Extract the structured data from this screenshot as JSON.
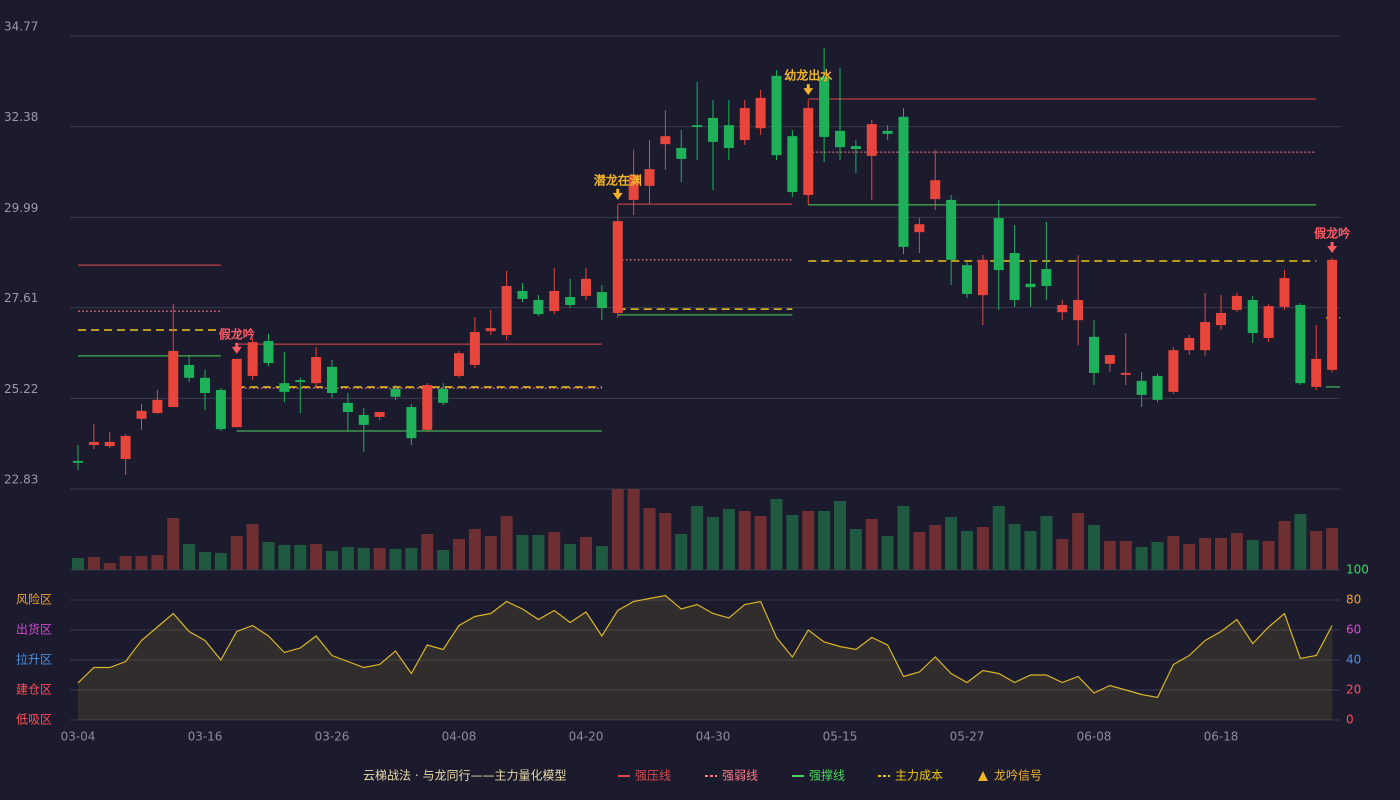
{
  "chart_data": [
    {
      "type": "candlestick",
      "title": "云梯战法 · 与龙同行——主力量化模型",
      "ylim": [
        22.83,
        34.77
      ],
      "yticks": [
        22.83,
        25.22,
        27.61,
        29.99,
        32.38,
        34.77
      ],
      "grid": true,
      "up_color": "#e8453c",
      "down_color": "#1fb05a",
      "open": [
        23.57,
        23.99,
        23.96,
        23.62,
        24.68,
        24.83,
        24.99,
        26.1,
        25.76,
        25.44,
        24.46,
        25.81,
        26.73,
        25.62,
        25.7,
        25.62,
        26.05,
        25.1,
        24.78,
        24.73,
        25.47,
        24.99,
        24.39,
        25.47,
        25.81,
        26.1,
        26.99,
        26.89,
        28.05,
        27.81,
        27.52,
        27.89,
        27.92,
        28.02,
        27.47,
        30.45,
        30.82,
        31.92,
        31.82,
        32.42,
        32.61,
        32.42,
        32.03,
        32.34,
        33.72,
        32.13,
        30.58,
        33.69,
        32.27,
        31.87,
        31.61,
        32.27,
        32.64,
        29.6,
        30.47,
        30.45,
        28.73,
        27.94,
        29.97,
        29.05,
        28.24,
        28.63,
        27.49,
        27.28,
        26.84,
        26.13,
        25.84,
        25.68,
        25.81,
        25.39,
        26.49,
        26.49,
        27.15,
        27.55,
        27.81,
        26.81,
        27.63,
        27.68,
        25.52,
        25.97
      ],
      "high": [
        23.99,
        24.54,
        24.33,
        24.28,
        25.07,
        25.44,
        27.71,
        26.36,
        25.97,
        25.49,
        26.26,
        26.81,
        26.92,
        26.44,
        25.76,
        26.57,
        26.23,
        25.36,
        24.96,
        24.86,
        25.57,
        25.07,
        25.62,
        25.62,
        26.47,
        27.36,
        27.55,
        28.58,
        28.26,
        27.94,
        28.66,
        28.37,
        28.66,
        28.21,
        30.32,
        31.77,
        32.03,
        32.82,
        32.29,
        33.56,
        33.08,
        33.08,
        33.08,
        33.35,
        33.87,
        32.29,
        33.08,
        34.45,
        33.93,
        32.03,
        32.56,
        32.42,
        32.87,
        29.97,
        31.77,
        30.58,
        28.81,
        29.0,
        30.45,
        29.79,
        28.87,
        29.87,
        27.81,
        28.99,
        27.28,
        26.36,
        26.94,
        25.91,
        25.86,
        26.57,
        26.89,
        28.0,
        27.94,
        28.0,
        27.92,
        27.71,
        28.6,
        27.73,
        27.15,
        28.92
      ],
      "low": [
        23.33,
        23.88,
        23.91,
        23.2,
        24.39,
        24.83,
        24.99,
        25.65,
        24.91,
        24.36,
        24.46,
        25.7,
        26.07,
        25.12,
        24.83,
        25.49,
        25.23,
        24.33,
        23.81,
        24.65,
        25.18,
        23.99,
        24.33,
        25.04,
        25.76,
        26.02,
        26.89,
        26.76,
        27.76,
        27.39,
        27.44,
        27.6,
        27.81,
        27.28,
        27.34,
        30.05,
        30.34,
        31.24,
        30.92,
        31.5,
        30.71,
        31.5,
        31.9,
        32.16,
        31.5,
        30.53,
        30.32,
        31.45,
        31.5,
        31.16,
        30.45,
        32.03,
        29.02,
        29.05,
        30.18,
        28.21,
        27.86,
        27.15,
        27.55,
        27.63,
        27.63,
        27.81,
        27.28,
        26.62,
        25.57,
        25.91,
        25.57,
        24.99,
        25.12,
        25.34,
        26.36,
        26.34,
        27.02,
        27.5,
        26.68,
        26.7,
        27.55,
        25.57,
        25.44,
        25.91
      ],
      "close": [
        23.52,
        24.07,
        24.07,
        24.23,
        24.89,
        25.18,
        26.47,
        25.76,
        25.36,
        24.41,
        26.26,
        26.7,
        26.15,
        25.39,
        25.65,
        26.31,
        25.36,
        24.86,
        24.52,
        24.86,
        25.26,
        24.17,
        25.57,
        25.1,
        26.41,
        26.97,
        27.07,
        28.18,
        27.84,
        27.44,
        28.05,
        27.68,
        28.37,
        27.6,
        29.89,
        31.11,
        31.26,
        32.13,
        31.53,
        32.37,
        31.98,
        31.82,
        32.87,
        33.14,
        31.63,
        30.66,
        32.87,
        32.11,
        31.84,
        31.79,
        32.45,
        32.19,
        29.21,
        29.81,
        30.97,
        28.87,
        27.97,
        28.87,
        28.6,
        27.81,
        28.15,
        28.18,
        27.68,
        27.81,
        25.89,
        26.36,
        25.89,
        25.31,
        25.18,
        26.49,
        26.81,
        27.23,
        27.47,
        27.92,
        26.94,
        27.65,
        28.39,
        25.62,
        26.26,
        28.87
      ],
      "series": [
        {
          "name": "强压线",
          "color": "#e0474c",
          "dash": "solid",
          "values": [
            28.73,
            28.73,
            28.73,
            28.73,
            28.73,
            28.73,
            28.73,
            28.73,
            28.73,
            28.73,
            26.65,
            26.65,
            26.65,
            26.65,
            26.65,
            26.65,
            26.65,
            26.65,
            26.65,
            26.65,
            26.65,
            26.65,
            26.65,
            26.65,
            26.65,
            26.65,
            26.65,
            26.65,
            26.65,
            26.65,
            26.65,
            26.65,
            26.65,
            26.65,
            30.34,
            30.34,
            30.34,
            30.34,
            30.34,
            30.34,
            30.34,
            30.34,
            30.34,
            30.34,
            30.34,
            30.34,
            33.11,
            33.11,
            33.11,
            33.11,
            33.11,
            33.11,
            33.11,
            33.11,
            33.11,
            33.11,
            33.11,
            33.11,
            33.11,
            33.11,
            33.11,
            33.11,
            33.11,
            33.11,
            33.11,
            33.11,
            33.11,
            33.11,
            33.11,
            33.11,
            33.11,
            33.11,
            33.11,
            33.11,
            33.11,
            33.11,
            33.11,
            33.11,
            33.11,
            null
          ]
        },
        {
          "name": "强弱线",
          "color": "#ff7a8a",
          "dash": "dotted",
          "values": [
            27.52,
            27.52,
            27.52,
            27.52,
            27.52,
            27.52,
            27.52,
            27.52,
            27.52,
            27.52,
            25.49,
            25.49,
            25.49,
            25.49,
            25.49,
            25.49,
            25.49,
            25.49,
            25.49,
            25.49,
            25.49,
            25.49,
            25.49,
            25.49,
            25.49,
            25.49,
            25.49,
            25.49,
            25.49,
            25.49,
            25.49,
            25.49,
            25.49,
            25.49,
            28.87,
            28.87,
            28.87,
            28.87,
            28.87,
            28.87,
            28.87,
            28.87,
            28.87,
            28.87,
            28.87,
            28.87,
            31.71,
            31.71,
            31.71,
            31.71,
            31.71,
            31.71,
            31.71,
            31.71,
            31.71,
            31.71,
            31.71,
            31.71,
            31.71,
            31.71,
            31.71,
            31.71,
            31.71,
            31.71,
            31.71,
            31.71,
            31.71,
            31.71,
            31.71,
            31.71,
            31.71,
            31.71,
            31.71,
            31.71,
            31.71,
            31.71,
            31.71,
            31.71,
            31.71,
            null
          ]
        },
        {
          "name": "强撑线",
          "color": "#4cd35c",
          "dash": "solid",
          "values": [
            26.34,
            26.34,
            26.34,
            26.34,
            26.34,
            26.34,
            26.34,
            26.34,
            26.34,
            26.34,
            24.36,
            24.36,
            24.36,
            24.36,
            24.36,
            24.36,
            24.36,
            24.36,
            24.36,
            24.36,
            24.36,
            24.36,
            24.36,
            24.36,
            24.36,
            24.36,
            24.36,
            24.36,
            24.36,
            24.36,
            24.36,
            24.36,
            24.36,
            24.36,
            27.42,
            27.42,
            27.42,
            27.42,
            27.42,
            27.42,
            27.42,
            27.42,
            27.42,
            27.42,
            27.42,
            27.42,
            30.32,
            30.32,
            30.32,
            30.32,
            30.32,
            30.32,
            30.32,
            30.32,
            30.32,
            30.32,
            30.32,
            30.32,
            30.32,
            30.32,
            30.32,
            30.32,
            30.32,
            30.32,
            30.32,
            30.32,
            30.32,
            30.32,
            30.32,
            30.32,
            30.32,
            30.32,
            30.32,
            30.32,
            30.32,
            30.32,
            30.32,
            30.32,
            30.32,
            25.52
          ]
        },
        {
          "name": "主力成本",
          "color": "#f0c419",
          "dash": "dashed",
          "values": [
            27.02,
            27.02,
            27.02,
            27.02,
            27.02,
            27.02,
            27.02,
            27.02,
            27.02,
            27.02,
            25.52,
            25.52,
            25.52,
            25.52,
            25.52,
            25.52,
            25.52,
            25.52,
            25.52,
            25.52,
            25.52,
            25.52,
            25.52,
            25.52,
            25.52,
            25.52,
            25.52,
            25.52,
            25.52,
            25.52,
            25.52,
            25.52,
            25.52,
            25.52,
            27.57,
            27.57,
            27.57,
            27.57,
            27.57,
            27.57,
            27.57,
            27.57,
            27.57,
            27.57,
            27.57,
            27.57,
            28.84,
            28.84,
            28.84,
            28.84,
            28.84,
            28.84,
            28.84,
            28.84,
            28.84,
            28.84,
            28.84,
            28.84,
            28.84,
            28.84,
            28.84,
            28.84,
            28.84,
            28.84,
            28.84,
            28.84,
            28.84,
            28.84,
            28.84,
            28.84,
            28.84,
            28.84,
            28.84,
            28.84,
            28.84,
            28.84,
            28.84,
            28.84,
            28.84,
            27.34
          ]
        }
      ],
      "annotations": [
        {
          "at": 10,
          "text": "假龙吟",
          "color": "#ff5a64"
        },
        {
          "at": 34,
          "text": "潜龙在渊",
          "color": "#f0b429"
        },
        {
          "at": 46,
          "text": "幼龙出水",
          "color": "#f0b429"
        },
        {
          "at": 79,
          "text": "假龙吟",
          "color": "#ff5a64"
        }
      ],
      "signal_legend": {
        "name": "龙吟信号",
        "color": "#f0b429"
      }
    },
    {
      "type": "bar",
      "ylim": [
        0,
        81
      ],
      "up_color": "#6e2f33",
      "down_color": "#1f5a40",
      "values": [
        12,
        13,
        7,
        14,
        14,
        15,
        52,
        26,
        18,
        17,
        34,
        46,
        28,
        25,
        25,
        26,
        19,
        23,
        22,
        22,
        21,
        22,
        36,
        20,
        31,
        41,
        34,
        54,
        35,
        35,
        38,
        26,
        33,
        24,
        81,
        81,
        62,
        57,
        36,
        64,
        53,
        61,
        59,
        54,
        71,
        55,
        59,
        59,
        69,
        41,
        51,
        34,
        64,
        38,
        45,
        53,
        39,
        43,
        64,
        46,
        39,
        54,
        31,
        57,
        45,
        29,
        29,
        23,
        28,
        34,
        26,
        32,
        32,
        37,
        30,
        29,
        49,
        56,
        39,
        42
      ]
    },
    {
      "type": "line",
      "ylim": [
        0,
        100
      ],
      "yticks": [
        0,
        20,
        40,
        60,
        80,
        100
      ],
      "ytick_colors": [
        "#ff4d5a",
        "#ff4d5a",
        "#4a90e2",
        "#d24bd2",
        "#f0a030",
        "#2ee05a"
      ],
      "zone_ticks": [
        {
          "value": 0,
          "label": "低吸区"
        },
        {
          "value": 20,
          "label": "建仓区"
        },
        {
          "value": 40,
          "label": "拉升区"
        },
        {
          "value": 60,
          "label": "出货区"
        },
        {
          "value": 80,
          "label": "风险区"
        }
      ],
      "zone_colors": [
        "#ff4d5a",
        "#ff4d5a",
        "#4a90e2",
        "#d24bd2",
        "#f0a030"
      ],
      "color": "#d9b526",
      "categories": [
        "03-04",
        null,
        null,
        null,
        null,
        null,
        null,
        null,
        "03-16",
        null,
        null,
        null,
        null,
        null,
        null,
        null,
        "03-26",
        null,
        null,
        null,
        null,
        null,
        null,
        null,
        "04-08",
        null,
        null,
        null,
        null,
        null,
        null,
        null,
        "04-20",
        null,
        null,
        null,
        null,
        null,
        null,
        null,
        "04-30",
        null,
        null,
        null,
        null,
        null,
        null,
        null,
        "05-15",
        null,
        null,
        null,
        null,
        null,
        null,
        null,
        "05-27",
        null,
        null,
        null,
        null,
        null,
        null,
        null,
        "06-08",
        null,
        null,
        null,
        null,
        null,
        null,
        null,
        "06-18",
        null,
        null,
        null,
        null,
        null,
        null,
        null
      ],
      "values": [
        24.7,
        35,
        35,
        39,
        53,
        62,
        71,
        59,
        53,
        40,
        59,
        63,
        56,
        45,
        48,
        56,
        43,
        39,
        35,
        37,
        46,
        31,
        50,
        47,
        63,
        69,
        71,
        79,
        74,
        67,
        73,
        65,
        72,
        56,
        73,
        79,
        81,
        83,
        74,
        77,
        71,
        68,
        77,
        79,
        55,
        42,
        60,
        52,
        49,
        47,
        55,
        50,
        29,
        32,
        42,
        31,
        25,
        33,
        31,
        25,
        30,
        30,
        25,
        29,
        18,
        23,
        20,
        17,
        15,
        37,
        43,
        53,
        59,
        67,
        51,
        62,
        71,
        41,
        43,
        63
      ]
    }
  ]
}
